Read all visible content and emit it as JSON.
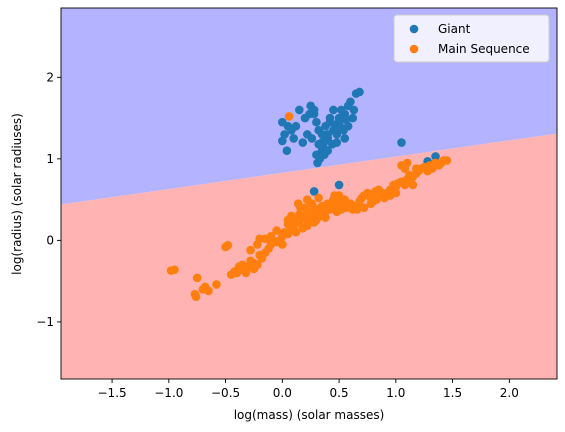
{
  "chart_data": {
    "type": "scatter",
    "title": "",
    "xlabel": "log(mass) (solar masses)",
    "ylabel": "log(radius) (solar radiuses)",
    "xlim": [
      -1.95,
      2.42
    ],
    "ylim": [
      -1.7,
      2.85
    ],
    "xticks": [
      -1.5,
      -1.0,
      -0.5,
      0.0,
      0.5,
      1.0,
      1.5,
      2.0
    ],
    "xtick_labels": [
      "−1.5",
      "−1.0",
      "−0.5",
      "0.0",
      "0.5",
      "1.0",
      "1.5",
      "2.0"
    ],
    "yticks": [
      -1,
      0,
      1,
      2
    ],
    "ytick_labels": [
      "−1",
      "0",
      "1",
      "2"
    ],
    "grid": false,
    "legend_position": "top-right",
    "decision_regions": {
      "boundary_line": {
        "x": [
          -1.95,
          2.42
        ],
        "y": [
          0.44,
          1.31
        ]
      },
      "above_class": "Giant",
      "below_class": "Main Sequence",
      "above_color": "#b3b3ff",
      "below_color": "#ffb3b3"
    },
    "series": [
      {
        "name": "Giant",
        "color": "#1f77b4",
        "points": [
          [
            0.0,
            1.45
          ],
          [
            0.05,
            1.4
          ],
          [
            0.02,
            1.3
          ],
          [
            0.08,
            1.35
          ],
          [
            0.0,
            1.22
          ],
          [
            0.04,
            1.1
          ],
          [
            0.15,
            1.6
          ],
          [
            0.2,
            1.5
          ],
          [
            0.25,
            1.65
          ],
          [
            0.28,
            1.55
          ],
          [
            0.3,
            1.45
          ],
          [
            0.22,
            1.3
          ],
          [
            0.18,
            1.2
          ],
          [
            0.26,
            1.25
          ],
          [
            0.32,
            1.35
          ],
          [
            0.35,
            1.2
          ],
          [
            0.38,
            1.4
          ],
          [
            0.4,
            1.1
          ],
          [
            0.3,
            1.05
          ],
          [
            0.31,
            0.95
          ],
          [
            0.33,
            1.0
          ],
          [
            0.36,
            1.15
          ],
          [
            0.4,
            1.25
          ],
          [
            0.42,
            1.45
          ],
          [
            0.45,
            1.35
          ],
          [
            0.48,
            1.3
          ],
          [
            0.5,
            1.45
          ],
          [
            0.52,
            1.6
          ],
          [
            0.55,
            1.55
          ],
          [
            0.58,
            1.4
          ],
          [
            0.55,
            1.25
          ],
          [
            0.6,
            1.7
          ],
          [
            0.65,
            1.8
          ],
          [
            0.68,
            1.82
          ],
          [
            0.62,
            1.5
          ],
          [
            0.58,
            1.65
          ],
          [
            0.5,
            1.5
          ],
          [
            0.45,
            1.6
          ],
          [
            0.42,
            1.5
          ],
          [
            0.47,
            1.42
          ],
          [
            0.52,
            1.38
          ],
          [
            0.4,
            1.3
          ],
          [
            0.35,
            1.3
          ],
          [
            0.44,
            1.18
          ],
          [
            0.38,
            1.22
          ],
          [
            0.56,
            1.48
          ],
          [
            0.63,
            1.6
          ],
          [
            0.28,
            1.6
          ],
          [
            0.24,
            1.55
          ],
          [
            0.12,
            1.4
          ],
          [
            0.1,
            1.25
          ],
          [
            0.48,
            1.2
          ],
          [
            0.35,
            1.1
          ],
          [
            0.37,
            1.05
          ],
          [
            0.32,
            1.18
          ],
          [
            0.54,
            1.35
          ],
          [
            1.05,
            1.2
          ],
          [
            1.35,
            1.03
          ],
          [
            1.28,
            0.97
          ],
          [
            0.28,
            0.6
          ],
          [
            0.5,
            0.68
          ]
        ]
      },
      {
        "name": "Main Sequence",
        "color": "#ff7f0e",
        "points": [
          [
            0.06,
            1.52
          ],
          [
            -0.98,
            -0.37
          ],
          [
            -0.95,
            -0.36
          ],
          [
            -0.75,
            -0.46
          ],
          [
            -0.77,
            -0.66
          ],
          [
            -0.76,
            -0.69
          ],
          [
            -0.68,
            -0.57
          ],
          [
            -0.65,
            -0.62
          ],
          [
            -0.7,
            -0.6
          ],
          [
            -0.58,
            -0.54
          ],
          [
            -0.5,
            -0.08
          ],
          [
            -0.48,
            -0.06
          ],
          [
            -0.4,
            -0.4
          ],
          [
            -0.35,
            -0.36
          ],
          [
            -0.3,
            -0.33
          ],
          [
            -0.25,
            -0.28
          ],
          [
            -0.22,
            -0.3
          ],
          [
            -0.18,
            -0.22
          ],
          [
            -0.15,
            -0.15
          ],
          [
            -0.12,
            -0.1
          ],
          [
            -0.1,
            0.05
          ],
          [
            -0.05,
            -0.02
          ],
          [
            0.0,
            0.05
          ],
          [
            0.02,
            0.1
          ],
          [
            0.05,
            0.08
          ],
          [
            0.08,
            0.15
          ],
          [
            0.1,
            0.2
          ],
          [
            0.12,
            0.25
          ],
          [
            0.15,
            0.22
          ],
          [
            0.18,
            0.28
          ],
          [
            0.2,
            0.3
          ],
          [
            0.22,
            0.25
          ],
          [
            0.25,
            0.35
          ],
          [
            0.28,
            0.4
          ],
          [
            0.3,
            0.32
          ],
          [
            0.32,
            0.38
          ],
          [
            0.35,
            0.42
          ],
          [
            0.38,
            0.35
          ],
          [
            0.4,
            0.4
          ],
          [
            0.42,
            0.45
          ],
          [
            0.45,
            0.5
          ],
          [
            0.48,
            0.45
          ],
          [
            0.5,
            0.55
          ],
          [
            0.52,
            0.48
          ],
          [
            0.55,
            0.5
          ],
          [
            0.58,
            0.45
          ],
          [
            0.6,
            0.4
          ],
          [
            0.62,
            0.38
          ],
          [
            0.65,
            0.42
          ],
          [
            0.68,
            0.48
          ],
          [
            0.7,
            0.52
          ],
          [
            0.72,
            0.55
          ],
          [
            0.75,
            0.58
          ],
          [
            0.78,
            0.52
          ],
          [
            0.8,
            0.48
          ],
          [
            0.82,
            0.6
          ],
          [
            0.85,
            0.62
          ],
          [
            0.88,
            0.55
          ],
          [
            0.9,
            0.52
          ],
          [
            0.92,
            0.58
          ],
          [
            0.95,
            0.62
          ],
          [
            0.98,
            0.68
          ],
          [
            1.0,
            0.65
          ],
          [
            1.02,
            0.7
          ],
          [
            1.05,
            0.72
          ],
          [
            1.08,
            0.68
          ],
          [
            1.1,
            0.75
          ],
          [
            1.12,
            0.8
          ],
          [
            1.15,
            0.78
          ],
          [
            1.18,
            0.82
          ],
          [
            1.2,
            0.85
          ],
          [
            1.22,
            0.88
          ],
          [
            1.25,
            0.9
          ],
          [
            1.28,
            0.85
          ],
          [
            1.3,
            0.92
          ],
          [
            1.32,
            0.88
          ],
          [
            1.35,
            0.95
          ],
          [
            1.38,
            0.92
          ],
          [
            1.4,
            0.95
          ],
          [
            1.42,
            0.98
          ],
          [
            1.45,
            0.98
          ],
          [
            1.05,
            0.92
          ],
          [
            1.1,
            0.95
          ],
          [
            1.08,
            0.88
          ],
          [
            1.12,
            0.72
          ],
          [
            1.18,
            0.88
          ],
          [
            1.15,
            0.68
          ],
          [
            -0.15,
            0.02
          ],
          [
            -0.1,
            -0.05
          ],
          [
            -0.05,
            0.12
          ],
          [
            0.0,
            -0.05
          ],
          [
            0.05,
            0.2
          ],
          [
            0.1,
            0.15
          ],
          [
            0.15,
            0.32
          ],
          [
            0.2,
            0.4
          ],
          [
            0.25,
            0.28
          ],
          [
            0.28,
            0.22
          ],
          [
            0.35,
            0.3
          ],
          [
            0.4,
            0.45
          ],
          [
            0.45,
            0.4
          ],
          [
            0.52,
            0.38
          ],
          [
            0.56,
            0.4
          ],
          [
            0.6,
            0.45
          ],
          [
            0.66,
            0.38
          ],
          [
            0.72,
            0.4
          ],
          [
            0.78,
            0.45
          ],
          [
            0.83,
            0.5
          ],
          [
            0.88,
            0.58
          ],
          [
            0.95,
            0.55
          ],
          [
            1.0,
            0.58
          ],
          [
            0.05,
            0.25
          ],
          [
            0.08,
            0.3
          ],
          [
            -0.02,
            0.0
          ],
          [
            -0.08,
            0.0
          ],
          [
            0.12,
            0.1
          ],
          [
            0.18,
            0.15
          ],
          [
            0.22,
            0.18
          ],
          [
            0.3,
            0.25
          ],
          [
            0.33,
            0.3
          ],
          [
            0.38,
            0.28
          ],
          [
            0.42,
            0.38
          ],
          [
            0.48,
            0.35
          ],
          [
            0.16,
            0.4
          ],
          [
            0.14,
            0.45
          ],
          [
            0.22,
            0.5
          ],
          [
            0.26,
            0.45
          ],
          [
            0.32,
            0.52
          ],
          [
            0.46,
            0.55
          ],
          [
            -0.45,
            -0.42
          ],
          [
            -0.42,
            -0.38
          ],
          [
            -0.35,
            -0.3
          ],
          [
            -0.28,
            -0.25
          ],
          [
            -0.2,
            -0.18
          ],
          [
            -0.28,
            -0.12
          ],
          [
            -0.22,
            -0.05
          ],
          [
            -0.2,
            0.02
          ],
          [
            -0.38,
            -0.32
          ],
          [
            -0.32,
            -0.4
          ],
          [
            -0.25,
            -0.35
          ]
        ]
      }
    ]
  }
}
